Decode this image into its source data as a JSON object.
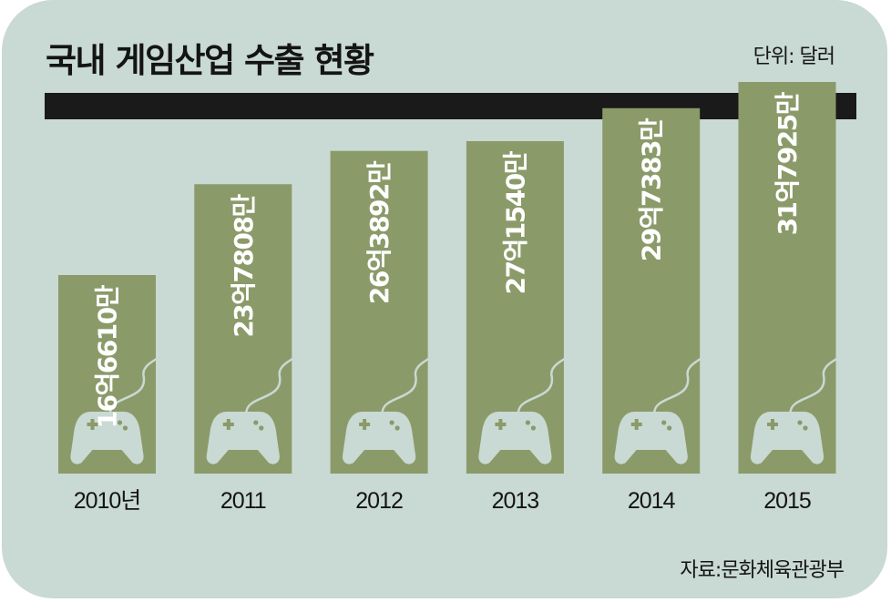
{
  "title": "국내 게임산업 수출 현황",
  "unit": "단위: 달러",
  "source": "자료:문화체육관광부",
  "colors": {
    "background": "#c9d9d3",
    "bar": "#8b9a69",
    "header_band": "#1a1a1a",
    "controller": "#c9d9d3"
  },
  "icons": [
    "game-controller-icon"
  ],
  "chart_data": {
    "type": "bar",
    "title": "국내 게임산업 수출 현황",
    "categories": [
      "2010년",
      "2011",
      "2012",
      "2013",
      "2014",
      "2015"
    ],
    "values": [
      1666100000,
      2378080000,
      2638920000,
      2715400000,
      2973830000,
      3179250000
    ],
    "data_labels": [
      "16억6610만",
      "23억7808만",
      "26억3892만",
      "27억1540만",
      "29억7383만",
      "31억7925만"
    ],
    "unit": "단위: 달러",
    "orientation": "vertical",
    "grid": false,
    "legend": "none"
  }
}
